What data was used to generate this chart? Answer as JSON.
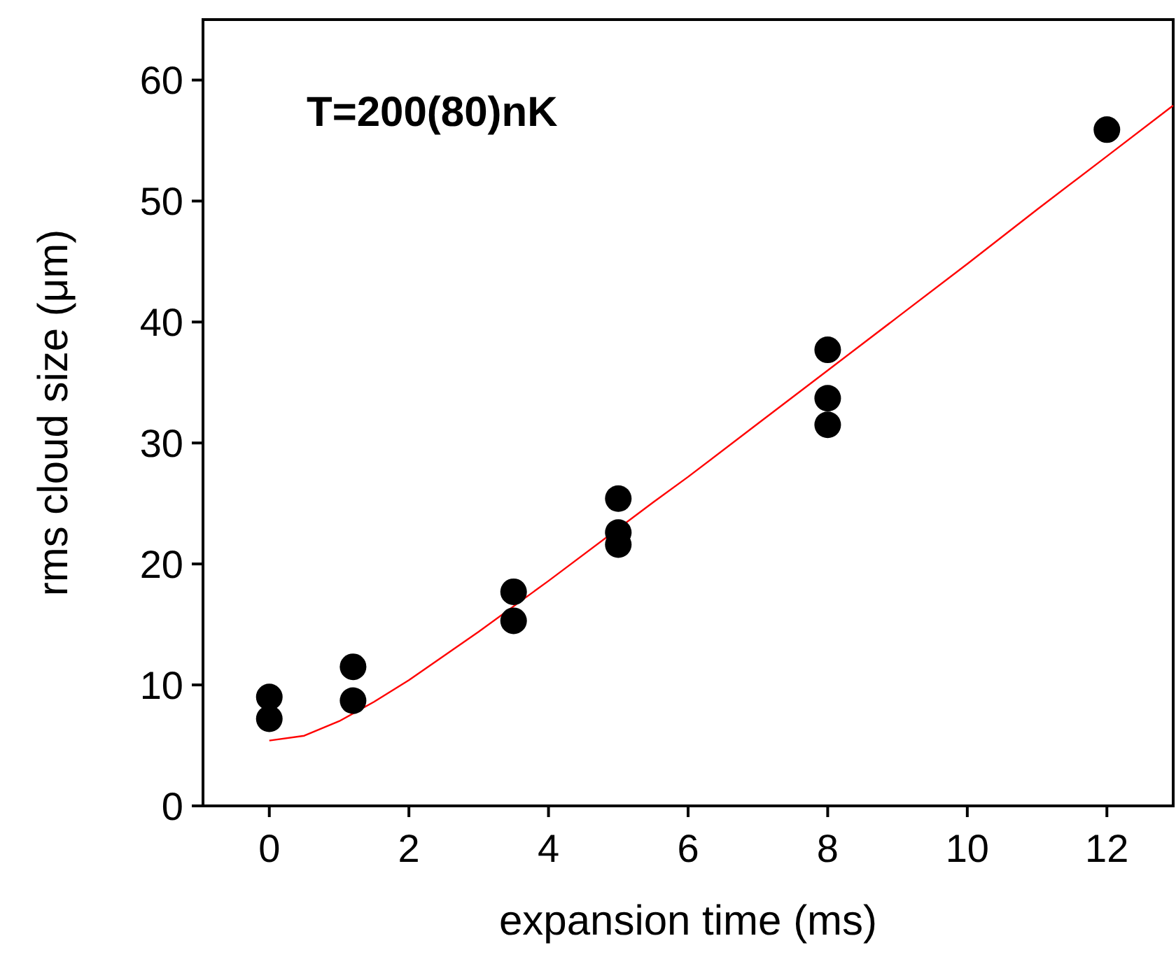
{
  "chart_data": {
    "type": "scatter",
    "xlabel": "expansion time (ms)",
    "ylabel": "rms cloud size (μm)",
    "annotations": [
      "T=200(80)nK"
    ],
    "xlim": [
      -0.95,
      12.95
    ],
    "ylim": [
      0,
      65
    ],
    "xticks": [
      0,
      2,
      4,
      6,
      8,
      10,
      12
    ],
    "yticks": [
      0,
      10,
      20,
      30,
      40,
      50,
      60
    ],
    "grid": false,
    "series": [
      {
        "color": "#000000",
        "marker": "circle",
        "x": [
          0,
          0,
          1.2,
          1.2,
          3.5,
          3.5,
          5,
          5,
          5,
          8,
          8,
          8,
          12
        ],
        "values": [
          9.0,
          7.2,
          11.5,
          8.7,
          17.7,
          15.3,
          25.4,
          22.6,
          21.6,
          37.7,
          33.7,
          31.5,
          55.9
        ]
      },
      {
        "type": "line",
        "color": "#ff0000",
        "marker": "none",
        "line_style": "solid",
        "x": [
          0,
          0.5,
          1,
          1.5,
          2,
          3,
          4,
          5.5,
          6,
          7,
          8,
          9,
          10,
          11,
          12,
          12.95
        ],
        "values": [
          5.4,
          5.8,
          7.0,
          8.6,
          10.4,
          14.4,
          18.6,
          25.1,
          27.2,
          31.6,
          36.0,
          40.4,
          44.8,
          49.3,
          53.7,
          57.9
        ]
      }
    ]
  }
}
